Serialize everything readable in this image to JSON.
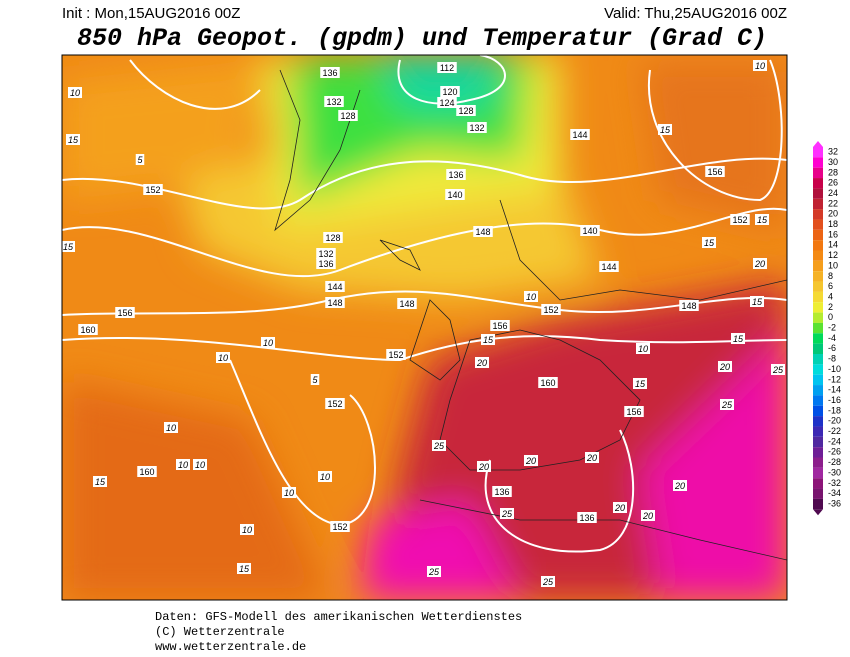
{
  "header": {
    "init": "Init : Mon,15AUG2016 00Z",
    "valid": "Valid: Thu,25AUG2016 00Z",
    "title": "850 hPa Geopot. (gpdm) und Temperatur (Grad C)"
  },
  "colorbar": {
    "levels": [
      32,
      30,
      28,
      26,
      24,
      22,
      20,
      18,
      16,
      14,
      12,
      10,
      8,
      6,
      4,
      2,
      0,
      -2,
      -4,
      -6,
      -8,
      -10,
      -12,
      -14,
      -16,
      -18,
      -20,
      -22,
      -24,
      -26,
      -28,
      -30,
      -32,
      -34,
      -36
    ],
    "colors": [
      "#ff30ff",
      "#ff00d0",
      "#e8008a",
      "#c8004a",
      "#b0103c",
      "#c02232",
      "#d43a28",
      "#e2501e",
      "#ec6414",
      "#f27810",
      "#f48a14",
      "#f59e1c",
      "#f5b226",
      "#f5c630",
      "#f5da34",
      "#eeee34",
      "#b4ec30",
      "#5ae232",
      "#00da5a",
      "#00c878",
      "#00d2b4",
      "#00dcdc",
      "#00c4f0",
      "#00a0f0",
      "#0078f0",
      "#0050e6",
      "#1e32c8",
      "#3c28b4",
      "#5028a0",
      "#6e1e96",
      "#8c1e8c",
      "#a028a0",
      "#8c1478",
      "#78146e",
      "#500a50"
    ]
  },
  "map_labels": [
    "112",
    "120",
    "124",
    "128",
    "132",
    "136",
    "140",
    "144",
    "148",
    "152",
    "152",
    "156",
    "160",
    "148",
    "144",
    "156",
    "152",
    "152",
    "160",
    "152",
    "148",
    "148",
    "156",
    "152",
    "160",
    "156",
    "136",
    "136",
    "136",
    "132",
    "128",
    "128",
    "132",
    "136",
    "140",
    "144",
    "10",
    "15",
    "5",
    "15",
    "10",
    "10",
    "5",
    "10",
    "10",
    "10",
    "15",
    "10",
    "10",
    "10",
    "15",
    "20",
    "15",
    "20",
    "20",
    "20",
    "25",
    "25",
    "20",
    "20",
    "25",
    "25",
    "20",
    "25",
    "20",
    "15",
    "15",
    "15",
    "15",
    "10",
    "15",
    "20",
    "15",
    "25",
    "10",
    "10"
  ],
  "footer": [
    "Daten: GFS-Modell des amerikanischen Wetterdienstes",
    "(C) Wetterzentrale",
    "www.wetterzentrale.de"
  ]
}
